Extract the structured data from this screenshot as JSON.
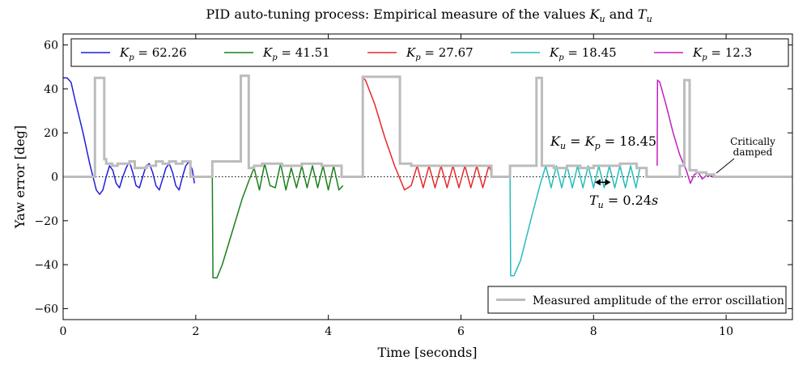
{
  "chart_data": {
    "type": "line",
    "title_parts": [
      "PID auto-tuning process: Empirical measure of the values ",
      "K",
      "u",
      " and ",
      "T",
      "u"
    ],
    "xlabel": "Time [seconds]",
    "ylabel": "Yaw error [deg]",
    "xlim": [
      0,
      11
    ],
    "ylim": [
      -65,
      65
    ],
    "xticks": [
      0,
      2,
      4,
      6,
      8,
      10
    ],
    "yticks": [
      -60,
      -40,
      -20,
      0,
      20,
      40,
      60
    ],
    "colors": {
      "blue": "#1f1fdc",
      "green": "#1a801a",
      "red": "#e8282a",
      "cyan": "#26bcbc",
      "magenta": "#c020c0",
      "amplitude": "#bcbcbc",
      "axis": "#000000"
    },
    "series": [
      {
        "name": "K_p = 62.26",
        "label_parts": [
          "K",
          "p",
          " = 62.26"
        ],
        "color": "#1f1fdc",
        "t": [
          0.0,
          0.06,
          0.12,
          0.18,
          0.3,
          0.4,
          0.5,
          0.55,
          0.6,
          0.65,
          0.7,
          0.75,
          0.8,
          0.85,
          0.9,
          0.95,
          1.0,
          1.05,
          1.1,
          1.15,
          1.2,
          1.25,
          1.3,
          1.35,
          1.4,
          1.45,
          1.5,
          1.55,
          1.6,
          1.65,
          1.7,
          1.75,
          1.8,
          1.85,
          1.9,
          1.95,
          1.98
        ],
        "y": [
          45,
          45,
          43,
          35,
          20,
          6,
          -6,
          -8,
          -6,
          0,
          5,
          3,
          -3,
          -5,
          0,
          4,
          7,
          2,
          -4,
          -5,
          0,
          5,
          6,
          2,
          -4,
          -6,
          -1,
          4,
          6,
          2,
          -4,
          -6,
          0,
          5,
          7,
          3,
          -3
        ]
      },
      {
        "name": "K_p = 41.51",
        "label_parts": [
          "K",
          "p",
          " = 41.51"
        ],
        "color": "#1a801a",
        "t": [
          2.25,
          2.26,
          2.32,
          2.4,
          2.55,
          2.7,
          2.8,
          2.88,
          2.96,
          3.04,
          3.12,
          3.2,
          3.28,
          3.36,
          3.44,
          3.52,
          3.6,
          3.68,
          3.76,
          3.84,
          3.92,
          4.0,
          4.08,
          4.16,
          4.22
        ],
        "y": [
          0,
          -46,
          -46,
          -40,
          -25,
          -10,
          -2,
          4,
          -6,
          6,
          -4,
          -5,
          6,
          -6,
          4,
          -5,
          5,
          -5,
          5,
          -5,
          5,
          -6,
          5,
          -6,
          -4
        ]
      },
      {
        "name": "K_p = 27.67",
        "label_parts": [
          "K",
          "p",
          " = 27.67"
        ],
        "color": "#e8282a",
        "t": [
          4.52,
          4.56,
          4.7,
          4.85,
          5.0,
          5.15,
          5.25,
          5.34,
          5.43,
          5.52,
          5.61,
          5.7,
          5.79,
          5.88,
          5.97,
          6.06,
          6.15,
          6.24,
          6.33,
          6.42,
          6.46
        ],
        "y": [
          45,
          44,
          33,
          18,
          5,
          -6,
          -4,
          5,
          -5,
          5,
          -5,
          5,
          -5,
          5,
          -5,
          5,
          -5,
          5,
          -5,
          5,
          2
        ]
      },
      {
        "name": "K_p = 18.45",
        "label_parts": [
          "K",
          "p",
          " = 18.45"
        ],
        "color": "#26bcbc",
        "t": [
          6.74,
          6.75,
          6.8,
          6.9,
          7.05,
          7.2,
          7.28,
          7.36,
          7.44,
          7.52,
          7.6,
          7.68,
          7.76,
          7.84,
          7.92,
          8.0,
          8.08,
          8.16,
          8.24,
          8.32,
          8.4,
          8.48,
          8.56,
          8.64,
          8.7
        ],
        "y": [
          0,
          -45,
          -45,
          -38,
          -20,
          -3,
          5,
          -5,
          5,
          -5,
          5,
          -5,
          5,
          -5,
          5,
          -5,
          5,
          -5,
          5,
          -5,
          5,
          -5,
          5,
          -5,
          4
        ]
      },
      {
        "name": "K_p = 12.3",
        "label_parts": [
          "K",
          "p",
          " = 12.3"
        ],
        "color": "#c020c0",
        "t": [
          8.96,
          8.965,
          9.0,
          9.1,
          9.2,
          9.3,
          9.4,
          9.46,
          9.52,
          9.58,
          9.64,
          9.7,
          9.76,
          9.82,
          9.88,
          9.94,
          10.0,
          10.05
        ],
        "y": [
          5,
          44,
          43,
          32,
          20,
          10,
          3,
          -3,
          1,
          2,
          -1,
          0.5,
          0.5,
          -0.3,
          0.2,
          0,
          0,
          0
        ]
      }
    ],
    "amplitude": {
      "name": "Measured amplitude of the error oscillation",
      "color": "#bcbcbc",
      "t": [
        0,
        0.48,
        0.48,
        0.62,
        0.62,
        0.65,
        0.65,
        0.74,
        0.74,
        0.82,
        0.82,
        1.0,
        1.0,
        1.08,
        1.08,
        1.26,
        1.26,
        1.4,
        1.4,
        1.5,
        1.5,
        1.6,
        1.6,
        1.7,
        1.7,
        1.8,
        1.8,
        1.92,
        1.92,
        2.25,
        2.25,
        2.68,
        2.68,
        2.8,
        2.8,
        2.88,
        2.88,
        3.0,
        3.0,
        3.3,
        3.3,
        3.6,
        3.6,
        3.9,
        3.9,
        4.2,
        4.2,
        4.52,
        4.52,
        5.08,
        5.08,
        5.25,
        5.25,
        5.5,
        5.5,
        6.46,
        6.46,
        6.74,
        6.74,
        7.14,
        7.14,
        7.22,
        7.22,
        7.4,
        7.4,
        7.6,
        7.6,
        7.8,
        7.8,
        8.0,
        8.0,
        8.4,
        8.4,
        8.65,
        8.65,
        8.8,
        8.8,
        9.3,
        9.3,
        9.37,
        9.37,
        9.45,
        9.45,
        9.55,
        9.55,
        9.7,
        9.7,
        9.82,
        9.82,
        11
      ],
      "y": [
        0,
        0,
        45,
        45,
        8,
        8,
        6,
        6,
        5,
        5,
        6,
        6,
        7,
        7,
        4,
        4,
        5,
        5,
        7,
        7,
        6,
        6,
        7,
        7,
        6,
        6,
        7,
        7,
        0,
        0,
        7,
        7,
        46,
        46,
        4,
        4,
        5,
        5,
        6,
        6,
        5,
        5,
        6,
        6,
        5,
        5,
        0,
        0,
        45.5,
        45.5,
        6,
        6,
        5,
        5,
        5,
        5,
        0,
        0,
        5,
        5,
        45,
        45,
        5,
        5,
        4,
        4,
        5,
        5,
        4,
        4,
        5,
        5,
        6,
        6,
        4,
        4,
        0,
        0,
        5,
        5,
        44,
        44,
        3,
        3,
        2,
        2,
        1,
        1,
        0,
        0
      ]
    },
    "legend_top": {
      "position": "top"
    },
    "legend_bottom": {
      "position": "lower-right",
      "label": "Measured amplitude of the error oscillation"
    },
    "annotations": {
      "ku_parts": [
        "K",
        "u",
        " = ",
        "K",
        "p",
        " = 18.45"
      ],
      "tu_parts": [
        "T",
        "u",
        " = 0.24",
        "s"
      ],
      "critically_line1": "Critically",
      "critically_line2": "damped",
      "tu_arrow_t": [
        8.02,
        8.26
      ],
      "tu_arrow_y": -2.5
    }
  }
}
